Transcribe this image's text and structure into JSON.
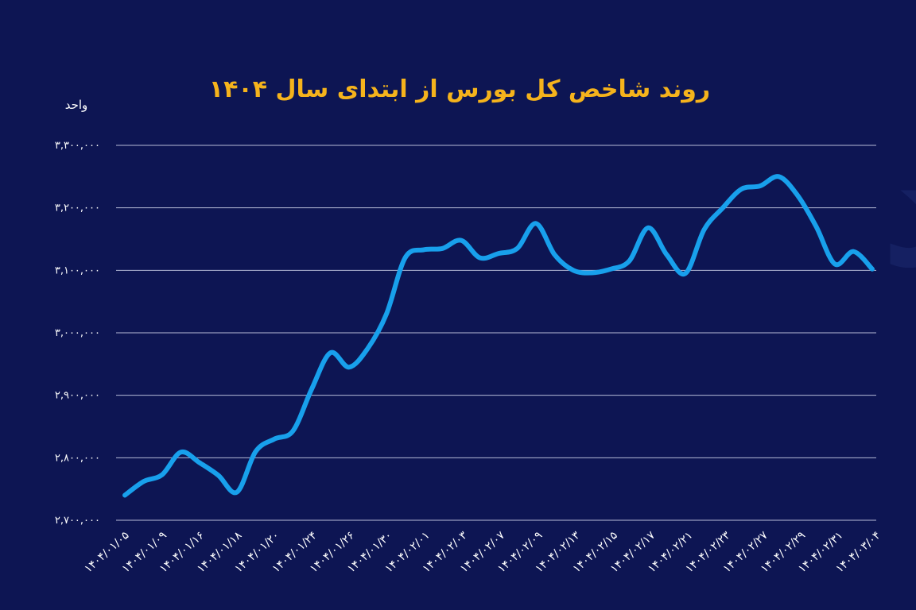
{
  "colors": {
    "background": "#0d1553",
    "title": "#f5b31c",
    "line": "#18a0ec",
    "grid": "#c9cde6",
    "text": "#ffffff"
  },
  "watermark_text": "دنیای اقتصاد",
  "chart_data": {
    "type": "line",
    "title": "روند شاخص کل بورس از ابتدای سال ۱۴۰۴",
    "ylabel": "واحد",
    "xlabel": "",
    "ylim": [
      2700000,
      3300000
    ],
    "y_ticks": [
      2700000,
      2800000,
      2900000,
      3000000,
      3100000,
      3200000,
      3300000
    ],
    "y_tick_labels": [
      "۲,۷۰۰,۰۰۰",
      "۲,۸۰۰,۰۰۰",
      "۲,۹۰۰,۰۰۰",
      "۳,۰۰۰,۰۰۰",
      "۳,۱۰۰,۰۰۰",
      "۳,۲۰۰,۰۰۰",
      "۳,۳۰۰,۰۰۰"
    ],
    "grid": true,
    "x_tick_labels": [
      "۱۴۰۴/۰۱/۰۵",
      "۱۴۰۴/۰۱/۰۹",
      "۱۴۰۴/۰۱/۱۶",
      "۱۴۰۴/۰۱/۱۸",
      "۱۴۰۴/۰۱/۲۰",
      "۱۴۰۴/۰۱/۲۴",
      "۱۴۰۴/۰۱/۲۶",
      "۱۴۰۴/۰۱/۳۰",
      "۱۴۰۴/۰۲/۰۱",
      "۱۴۰۴/۰۲/۰۳",
      "۱۴۰۴/۰۲/۰۷",
      "۱۴۰۴/۰۲/۰۹",
      "۱۴۰۴/۰۲/۱۳",
      "۱۴۰۴/۰۲/۱۵",
      "۱۴۰۴/۰۲/۱۷",
      "۱۴۰۴/۰۲/۲۱",
      "۱۴۰۴/۰۲/۲۳",
      "۱۴۰۴/۰۲/۲۷",
      "۱۴۰۴/۰۲/۲۹",
      "۱۴۰۴/۰۲/۳۱",
      "۱۴۰۴/۰۳/۰۴"
    ],
    "series": [
      {
        "values": [
          2740000,
          2762000,
          2773000,
          2809000,
          2792000,
          2772000,
          2745000,
          2810000,
          2830000,
          2843000,
          2910000,
          2968000,
          2945000,
          2975000,
          3030000,
          3120000,
          3133000,
          3135000,
          3148000,
          3120000,
          3127000,
          3135000,
          3175000,
          3125000,
          3100000,
          3096000,
          3102000,
          3115000,
          3168000,
          3125000,
          3095000,
          3165000,
          3200000,
          3230000,
          3235000,
          3250000,
          3220000,
          3170000,
          3110000,
          3130000,
          3102000
        ]
      }
    ]
  }
}
